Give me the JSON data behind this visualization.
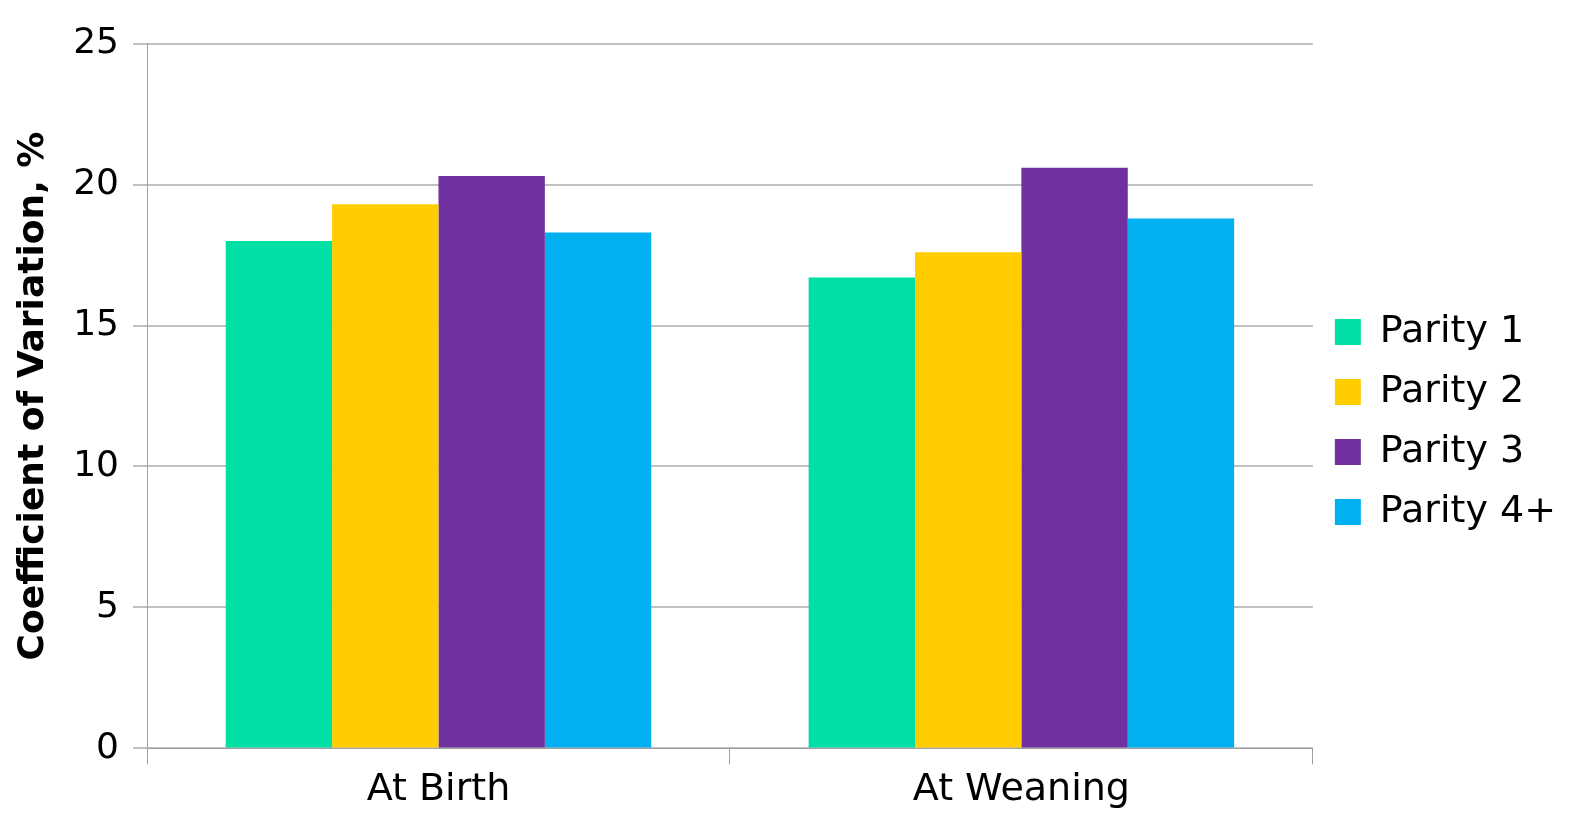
{
  "chart_data": {
    "type": "bar",
    "ylabel": "Coefficient of Variation, %",
    "categories": [
      "At Birth",
      "At Weaning"
    ],
    "series": [
      {
        "name": "Parity 1",
        "color": "#00e0a4",
        "values": [
          18.0,
          16.7
        ]
      },
      {
        "name": "Parity 2",
        "color": "#ffcc00",
        "values": [
          19.3,
          17.6
        ]
      },
      {
        "name": "Parity 3",
        "color": "#7030a0",
        "values": [
          20.3,
          20.6
        ]
      },
      {
        "name": "Parity 4+",
        "color": "#00b0f0",
        "values": [
          18.3,
          18.8
        ]
      }
    ],
    "ylim": [
      0,
      25
    ],
    "yticks": [
      0,
      5,
      10,
      15,
      20,
      25
    ],
    "grid": "y",
    "legend": "right"
  }
}
